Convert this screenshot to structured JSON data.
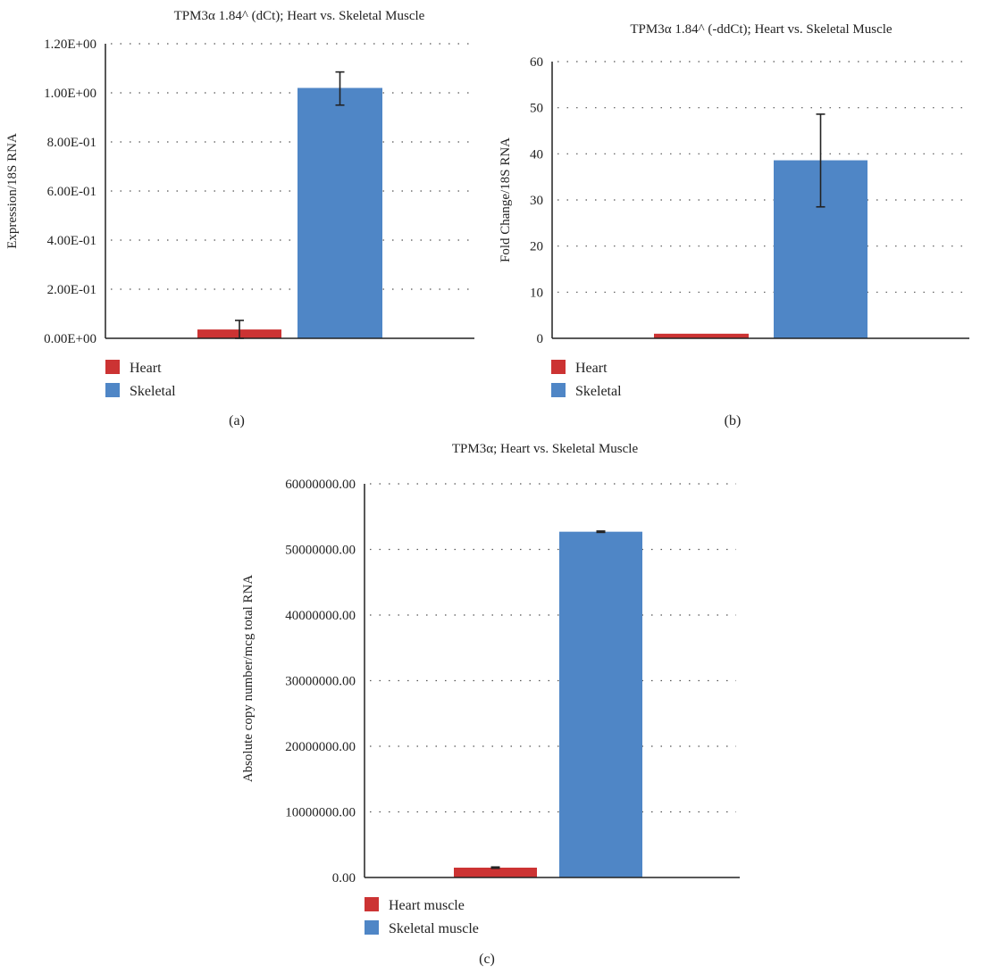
{
  "colors": {
    "heart": "#cc3333",
    "skeletal": "#4f86c6",
    "axis": "#222222",
    "error_bar": "#222222"
  },
  "chart_data": [
    {
      "type": "bar",
      "caption": "(a)",
      "title": "TPM3α 1.84^ (dCt); Heart vs. Skeletal Muscle",
      "xlabel": "",
      "ylabel": "Expression/18S RNA",
      "ylim": [
        0,
        1.2
      ],
      "yticks": [
        0,
        0.2,
        0.4,
        0.6,
        0.8,
        1.0,
        1.2
      ],
      "ytick_labels": [
        "0.00E+00",
        "2.00E-01",
        "4.00E-01",
        "6.00E-01",
        "8.00E-01",
        "1.00E+00",
        "1.20E+00"
      ],
      "grid": "dotted horizontal",
      "legend_position": "bottom-left",
      "series": [
        {
          "name": "Heart",
          "color": "#cc3333",
          "value": 0.036,
          "error_low": 0.0,
          "error_high": 0.073
        },
        {
          "name": "Skeletal",
          "color": "#4f86c6",
          "value": 1.02,
          "error_low": 0.95,
          "error_high": 1.085
        }
      ]
    },
    {
      "type": "bar",
      "caption": "(b)",
      "title": "TPM3α 1.84^ (-ddCt); Heart vs. Skeletal Muscle",
      "xlabel": "",
      "ylabel": "Fold Change/18S RNA",
      "ylim": [
        0,
        60
      ],
      "yticks": [
        0,
        10,
        20,
        30,
        40,
        50,
        60
      ],
      "ytick_labels": [
        "0",
        "10",
        "20",
        "30",
        "40",
        "50",
        "60"
      ],
      "grid": "dotted horizontal",
      "legend_position": "bottom-left",
      "series": [
        {
          "name": "Heart",
          "color": "#cc3333",
          "value": 1.0,
          "error_low": null,
          "error_high": null
        },
        {
          "name": "Skeletal",
          "color": "#4f86c6",
          "value": 38.6,
          "error_low": 28.5,
          "error_high": 48.6
        }
      ]
    },
    {
      "type": "bar",
      "caption": "(c)",
      "title": "TPM3α; Heart vs. Skeletal Muscle",
      "xlabel": "",
      "ylabel": "Absolute copy number/mcg total RNA",
      "ylim": [
        0,
        60000000
      ],
      "yticks": [
        0,
        10000000,
        20000000,
        30000000,
        40000000,
        50000000,
        60000000
      ],
      "ytick_labels": [
        "0.00",
        "10000000.00",
        "20000000.00",
        "30000000.00",
        "40000000.00",
        "50000000.00",
        "60000000.00"
      ],
      "grid": "dotted horizontal",
      "legend_position": "bottom-left",
      "series": [
        {
          "name": "Heart muscle",
          "color": "#cc3333",
          "value": 1500000,
          "error_low": 1400000,
          "error_high": 1600000
        },
        {
          "name": "Skeletal muscle",
          "color": "#4f86c6",
          "value": 52700000,
          "error_low": 52600000,
          "error_high": 52800000
        }
      ]
    }
  ]
}
